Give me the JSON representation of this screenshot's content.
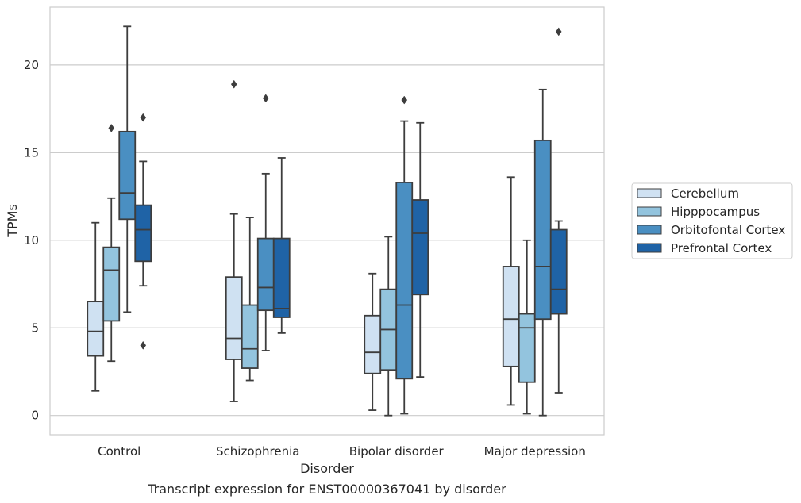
{
  "chart_data": {
    "type": "box",
    "xlabel": "Disorder",
    "ylabel": "TPMs",
    "caption": "Transcript expression for ENST00000367041 by disorder",
    "ylim": [
      -1.1,
      23.3
    ],
    "yticks": [
      0,
      5,
      10,
      15,
      20
    ],
    "grid": "horizontal",
    "legend_position": "right",
    "categories": [
      "Control",
      "Schizophrenia",
      "Bipolar disorder",
      "Major depression"
    ],
    "series": [
      {
        "name": "Cerebellum",
        "color": "#cfe1f2",
        "boxes": [
          {
            "whislo": 1.4,
            "q1": 3.4,
            "med": 4.8,
            "q3": 6.5,
            "whishi": 11.0,
            "fliers": []
          },
          {
            "whislo": 0.8,
            "q1": 3.2,
            "med": 4.4,
            "q3": 7.9,
            "whishi": 11.5,
            "fliers": [
              18.9
            ]
          },
          {
            "whislo": 0.3,
            "q1": 2.4,
            "med": 3.6,
            "q3": 5.7,
            "whishi": 8.1,
            "fliers": []
          },
          {
            "whislo": 0.6,
            "q1": 2.8,
            "med": 5.5,
            "q3": 8.5,
            "whishi": 13.6,
            "fliers": []
          }
        ]
      },
      {
        "name": "Hipppocampus",
        "color": "#93c4de",
        "boxes": [
          {
            "whislo": 3.1,
            "q1": 5.4,
            "med": 8.3,
            "q3": 9.6,
            "whishi": 12.4,
            "fliers": [
              16.4
            ]
          },
          {
            "whislo": 2.0,
            "q1": 2.7,
            "med": 3.8,
            "q3": 6.3,
            "whishi": 11.3,
            "fliers": []
          },
          {
            "whislo": 0.0,
            "q1": 2.6,
            "med": 4.9,
            "q3": 7.2,
            "whishi": 10.2,
            "fliers": []
          },
          {
            "whislo": 0.1,
            "q1": 1.9,
            "med": 5.0,
            "q3": 5.8,
            "whishi": 10.0,
            "fliers": []
          }
        ]
      },
      {
        "name": "Orbitofontal Cortex",
        "color": "#4a8fc2",
        "boxes": [
          {
            "whislo": 5.9,
            "q1": 11.2,
            "med": 12.7,
            "q3": 16.2,
            "whishi": 22.2,
            "fliers": []
          },
          {
            "whislo": 3.7,
            "q1": 6.0,
            "med": 7.3,
            "q3": 10.1,
            "whishi": 13.8,
            "fliers": [
              18.1
            ]
          },
          {
            "whislo": 0.1,
            "q1": 2.1,
            "med": 6.3,
            "q3": 13.3,
            "whishi": 16.8,
            "fliers": [
              18.0
            ]
          },
          {
            "whislo": 0.0,
            "q1": 5.5,
            "med": 8.5,
            "q3": 15.7,
            "whishi": 18.6,
            "fliers": []
          }
        ]
      },
      {
        "name": "Prefrontal Cortex",
        "color": "#1f63a6",
        "boxes": [
          {
            "whislo": 7.4,
            "q1": 8.8,
            "med": 10.6,
            "q3": 12.0,
            "whishi": 14.5,
            "fliers": [
              17.0,
              4.0
            ]
          },
          {
            "whislo": 4.7,
            "q1": 5.6,
            "med": 6.1,
            "q3": 10.1,
            "whishi": 14.7,
            "fliers": []
          },
          {
            "whislo": 2.2,
            "q1": 6.9,
            "med": 10.4,
            "q3": 12.3,
            "whishi": 16.7,
            "fliers": []
          },
          {
            "whislo": 1.3,
            "q1": 5.8,
            "med": 7.2,
            "q3": 10.6,
            "whishi": 11.1,
            "fliers": [
              21.9
            ]
          }
        ]
      }
    ]
  }
}
